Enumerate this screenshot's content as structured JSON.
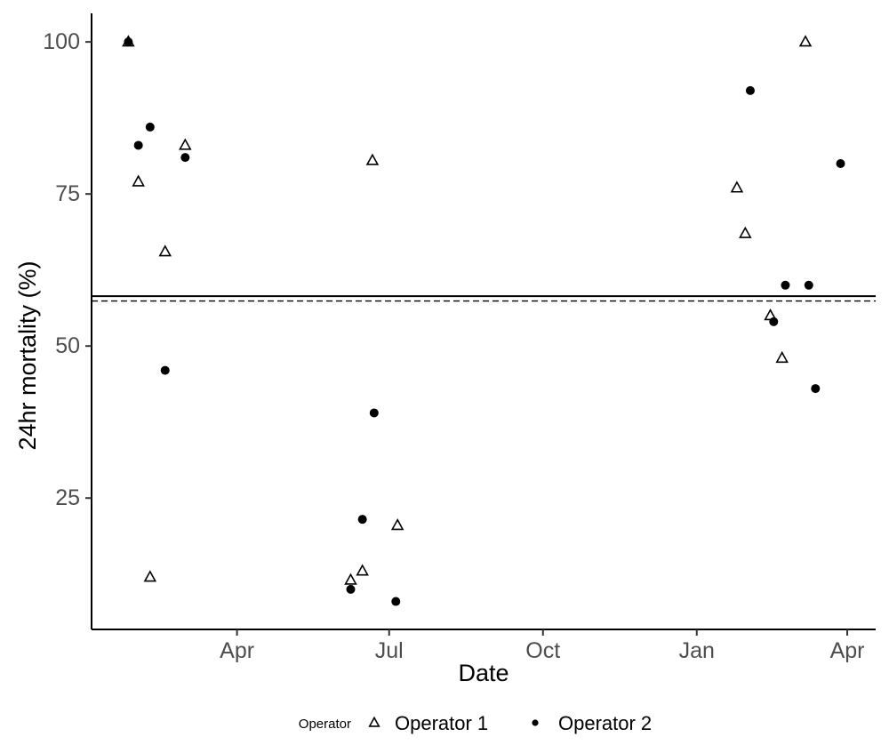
{
  "chart_data": {
    "type": "scatter",
    "title": "",
    "xlabel": "Date",
    "ylabel": "24hr mortality (%)",
    "grid": false,
    "background": "#ffffff",
    "colors": {
      "marker": "#000000",
      "axis_line": "#000000",
      "tick_label": "#4d4d4d",
      "reference_line": "#000000"
    },
    "x_axis": {
      "unit": "day offset (day 0 = Jan 1 of first year; axis spans two calendar years)",
      "range_days": [
        3,
        472
      ],
      "ticks": [
        {
          "day": 90,
          "label": "Apr"
        },
        {
          "day": 181,
          "label": "Jul"
        },
        {
          "day": 273,
          "label": "Oct"
        },
        {
          "day": 365,
          "label": "Jan"
        },
        {
          "day": 455,
          "label": "Apr"
        }
      ]
    },
    "y_axis": {
      "range": [
        3.4,
        104.7
      ],
      "ticks": [
        {
          "value": 100,
          "label": "100"
        },
        {
          "value": 75,
          "label": "75"
        },
        {
          "value": 50,
          "label": "50"
        },
        {
          "value": 25,
          "label": "25"
        }
      ]
    },
    "reference_lines": [
      {
        "style": "solid",
        "value": 58.2
      },
      {
        "style": "dashed",
        "value": 57.4
      }
    ],
    "legend": {
      "title": "Operator",
      "position": "bottom",
      "items": [
        {
          "label": "Operator 1",
          "marker": "open-triangle"
        },
        {
          "label": "Operator 2",
          "marker": "filled-circle"
        }
      ]
    },
    "series": [
      {
        "name": "Operator 1",
        "marker": "open-triangle",
        "points": [
          {
            "day": 25,
            "date": "Jan 26",
            "y": 100
          },
          {
            "day": 31,
            "date": "Feb 1",
            "y": 77
          },
          {
            "day": 38,
            "date": "Feb 8",
            "y": 12
          },
          {
            "day": 47,
            "date": "Feb 17",
            "y": 65.5
          },
          {
            "day": 59,
            "date": "Mar 1",
            "y": 83
          },
          {
            "day": 158,
            "date": "Jun 8",
            "y": 11.5
          },
          {
            "day": 165,
            "date": "Jun 15",
            "y": 13
          },
          {
            "day": 171,
            "date": "Jun 21",
            "y": 80.5
          },
          {
            "day": 186,
            "date": "Jul 6",
            "y": 20.5
          },
          {
            "day": 389,
            "date": "Jan 25",
            "y": 76
          },
          {
            "day": 394,
            "date": "Jan 30",
            "y": 68.5
          },
          {
            "day": 409,
            "date": "Feb 14",
            "y": 55
          },
          {
            "day": 416,
            "date": "Feb 21",
            "y": 48
          },
          {
            "day": 430,
            "date": "Mar 7",
            "y": 100
          }
        ]
      },
      {
        "name": "Operator 2",
        "marker": "filled-circle",
        "points": [
          {
            "day": 25,
            "date": "Jan 26",
            "y": 100
          },
          {
            "day": 31,
            "date": "Feb 1",
            "y": 83
          },
          {
            "day": 38,
            "date": "Feb 8",
            "y": 86
          },
          {
            "day": 47,
            "date": "Feb 17",
            "y": 46
          },
          {
            "day": 59,
            "date": "Mar 1",
            "y": 81
          },
          {
            "day": 158,
            "date": "Jun 8",
            "y": 10
          },
          {
            "day": 165,
            "date": "Jun 15",
            "y": 21.5
          },
          {
            "day": 172,
            "date": "Jun 22",
            "y": 39
          },
          {
            "day": 185,
            "date": "Jul 5",
            "y": 8
          },
          {
            "day": 397,
            "date": "Feb 2",
            "y": 92
          },
          {
            "day": 411,
            "date": "Feb 16",
            "y": 54
          },
          {
            "day": 418,
            "date": "Feb 23",
            "y": 60
          },
          {
            "day": 432,
            "date": "Mar 9",
            "y": 60
          },
          {
            "day": 436,
            "date": "Mar 13",
            "y": 43
          },
          {
            "day": 451,
            "date": "Mar 28",
            "y": 80
          }
        ]
      }
    ]
  }
}
